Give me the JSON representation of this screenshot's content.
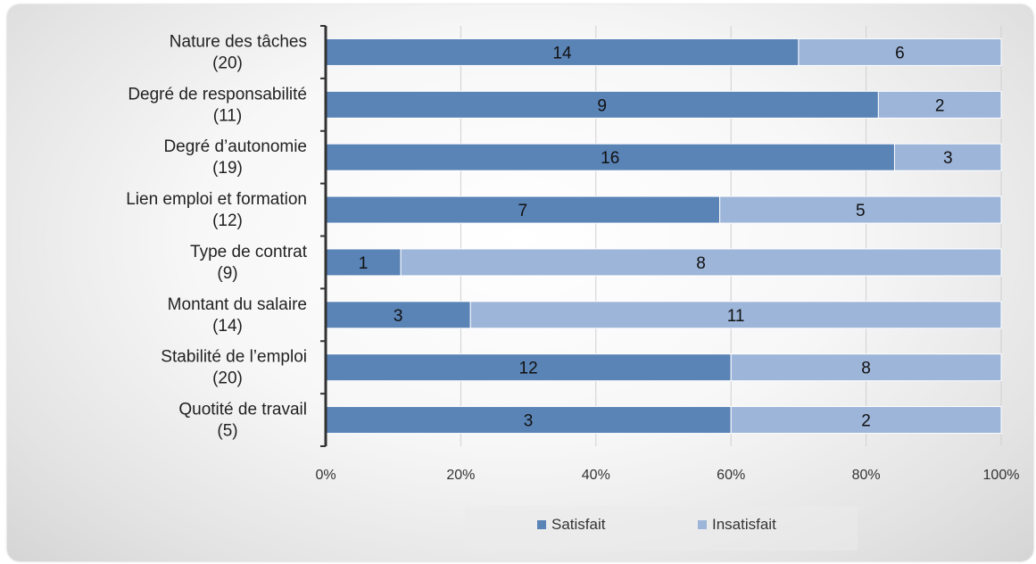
{
  "chart_data": {
    "type": "bar",
    "orientation": "horizontal",
    "stacked": "percent",
    "categories": [
      [
        "Nature des tâches",
        "(20)"
      ],
      [
        "Degré de responsabilité",
        "(11)"
      ],
      [
        "Degré d’autonomie",
        "(19)"
      ],
      [
        "Lien emploi et formation",
        "(12)"
      ],
      [
        "Type de contrat",
        "(9)"
      ],
      [
        "Montant du salaire",
        "(14)"
      ],
      [
        "Stabilité de l’emploi",
        "(20)"
      ],
      [
        "Quotité de travail",
        "(5)"
      ]
    ],
    "series": [
      {
        "name": "Satisfait",
        "color": "#5a83b6",
        "values": [
          14,
          9,
          16,
          7,
          1,
          3,
          12,
          3
        ]
      },
      {
        "name": "Insatisfait",
        "color": "#9db5d9",
        "values": [
          6,
          2,
          3,
          5,
          8,
          11,
          8,
          2
        ]
      }
    ],
    "x_ticks": [
      "0%",
      "20%",
      "40%",
      "60%",
      "80%",
      "100%"
    ],
    "xlim": [
      0,
      100
    ],
    "grid": true,
    "legend_position": "bottom"
  }
}
